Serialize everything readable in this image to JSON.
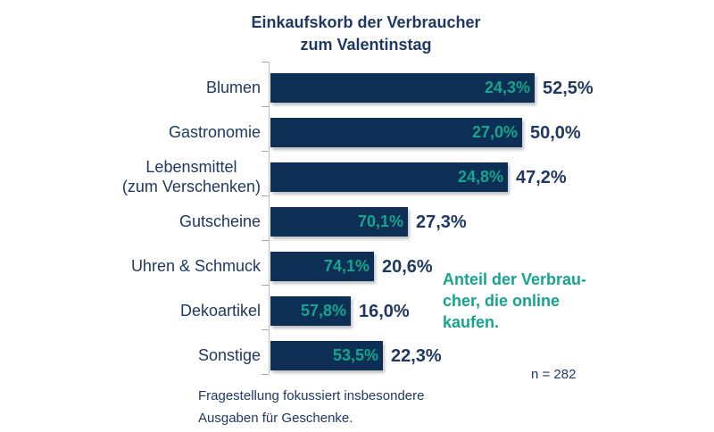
{
  "title": "Einkaufskorb der Verbraucher\nzum Valentinstag",
  "annotation": {
    "text": "Anteil der Verbrau-\ncher, die online\nkaufen."
  },
  "sample_size": "n = 282",
  "footnote": "Fragestellung fokussiert insbesondere\nAusgaben für Geschenke.",
  "colors": {
    "bar": "#0d2f55",
    "navy_text": "#1f3864",
    "accent_green": "#15a48c",
    "tick_gray": "#a6a6a6",
    "axis_gray": "#bfbfbf"
  },
  "chart_data": {
    "type": "bar",
    "orientation": "horizontal",
    "title": "Einkaufskorb der Verbraucher zum Valentinstag",
    "unit": "%",
    "xlim": [
      0,
      88
    ],
    "grid": false,
    "legend_position": "none",
    "categories": [
      "Blumen",
      "Gastronomie",
      "Lebensmittel (zum Verschenken)",
      "Gutscheine",
      "Uhren & Schmuck",
      "Dekoartikel",
      "Sonstige"
    ],
    "series": [
      {
        "name": "Anteil der Verbraucher",
        "values": [
          52.5,
          50.0,
          47.2,
          27.3,
          20.6,
          16.0,
          22.3
        ]
      },
      {
        "name": "Anteil der Verbraucher, die online kaufen",
        "values": [
          24.3,
          27.0,
          24.8,
          70.1,
          74.1,
          57.8,
          53.5
        ]
      }
    ],
    "rows": [
      {
        "category_display": "Blumen",
        "basket_share": 52.5,
        "basket_share_label": "52,5%",
        "online_share": 24.3,
        "online_share_label": "24,3%"
      },
      {
        "category_display": "Gastronomie",
        "basket_share": 50.0,
        "basket_share_label": "50,0%",
        "online_share": 27.0,
        "online_share_label": "27,0%"
      },
      {
        "category_display": "Lebensmittel\n(zum Verschenken)",
        "basket_share": 47.2,
        "basket_share_label": "47,2%",
        "online_share": 24.8,
        "online_share_label": "24,8%"
      },
      {
        "category_display": "Gutscheine",
        "basket_share": 27.3,
        "basket_share_label": "27,3%",
        "online_share": 70.1,
        "online_share_label": "70,1%"
      },
      {
        "category_display": "Uhren & Schmuck",
        "basket_share": 20.6,
        "basket_share_label": "20,6%",
        "online_share": 74.1,
        "online_share_label": "74,1%"
      },
      {
        "category_display": "Dekoartikel",
        "basket_share": 16.0,
        "basket_share_label": "16,0%",
        "online_share": 57.8,
        "online_share_label": "57,8%"
      },
      {
        "category_display": "Sonstige",
        "basket_share": 22.3,
        "basket_share_label": "22,3%",
        "online_share": 53.5,
        "online_share_label": "53,5%"
      }
    ]
  }
}
